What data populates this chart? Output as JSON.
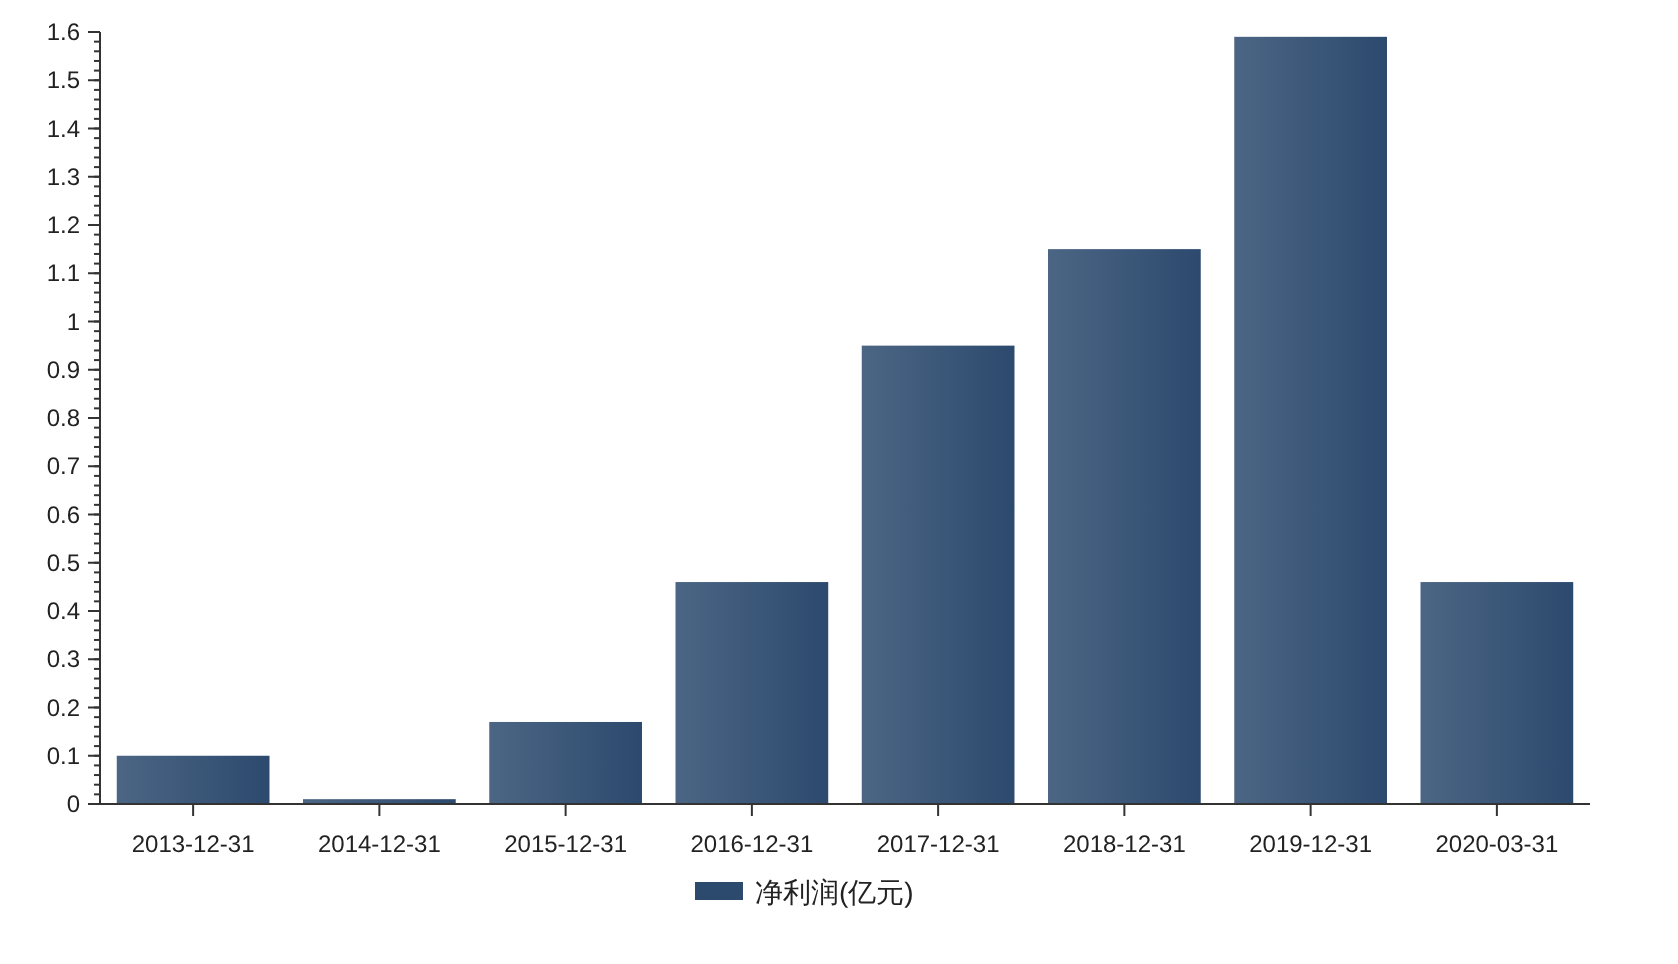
{
  "chart_data": {
    "type": "bar",
    "categories": [
      "2013-12-31",
      "2014-12-31",
      "2015-12-31",
      "2016-12-31",
      "2017-12-31",
      "2018-12-31",
      "2019-12-31",
      "2020-03-31"
    ],
    "series": [
      {
        "name": "净利润(亿元)",
        "color": "#2c4a6e",
        "values": [
          0.1,
          0.01,
          0.17,
          0.46,
          0.95,
          1.15,
          1.59,
          0.46
        ]
      }
    ],
    "ylim": [
      0,
      1.6
    ],
    "yticks": [
      0,
      {
        "value": 0.1,
        "label": "0.1"
      },
      {
        "value": 0.2,
        "label": "0.2"
      },
      {
        "value": 0.3,
        "label": "0.3"
      },
      {
        "value": 0.4,
        "label": "0.4"
      },
      {
        "value": 0.5,
        "label": "0.5"
      },
      {
        "value": 0.6,
        "label": "0.6"
      },
      {
        "value": 0.7,
        "label": "0.7"
      },
      {
        "value": 0.8,
        "label": "0.8"
      },
      {
        "value": 0.9,
        "label": "0.9"
      },
      1,
      {
        "value": 1.1,
        "label": "1.1"
      },
      {
        "value": 1.2,
        "label": "1.2"
      },
      {
        "value": 1.3,
        "label": "1.3"
      },
      {
        "value": 1.4,
        "label": "1.4"
      },
      {
        "value": 1.5,
        "label": "1.5"
      },
      {
        "value": 1.6,
        "label": "1.6"
      }
    ],
    "grid": false,
    "legend": "bottom"
  }
}
